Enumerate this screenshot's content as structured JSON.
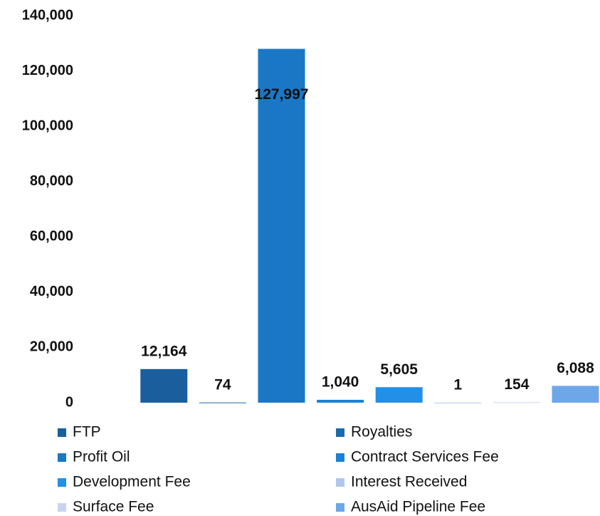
{
  "chart_data": {
    "type": "bar",
    "series": [
      {
        "name": "FTP",
        "color": "#1a5e9e",
        "values": [
          12164
        ],
        "value_labels": [
          "12,164"
        ]
      },
      {
        "name": "Royalties",
        "color": "#1c6aae",
        "values": [
          74
        ],
        "value_labels": [
          "74"
        ]
      },
      {
        "name": "Profit Oil",
        "color": "#1a77c6",
        "values": [
          127997
        ],
        "value_labels": [
          "127,997"
        ]
      },
      {
        "name": "Contract Services Fee",
        "color": "#1b82d4",
        "values": [
          1040
        ],
        "value_labels": [
          "1,040"
        ]
      },
      {
        "name": "Development Fee",
        "color": "#238fe6",
        "values": [
          5605
        ],
        "value_labels": [
          "5,605"
        ]
      },
      {
        "name": "Interest Received",
        "color": "#b1c8ec",
        "values": [
          1
        ],
        "value_labels": [
          "1"
        ]
      },
      {
        "name": "Surface Fee",
        "color": "#c9d4ee",
        "values": [
          154
        ],
        "value_labels": [
          "154"
        ]
      },
      {
        "name": "AusAid Pipeline Fee",
        "color": "#6ea7e8",
        "values": [
          6088
        ],
        "value_labels": [
          "6,088"
        ]
      }
    ],
    "ylim": [
      0,
      140000
    ],
    "yticks": [
      0,
      {
        "value": 20000,
        "label": "20,000"
      },
      {
        "value": 40000,
        "label": "40,000"
      },
      {
        "value": 60000,
        "label": "60,000"
      },
      {
        "value": 80000,
        "label": "80,000"
      },
      {
        "value": 100000,
        "label": "100,000"
      },
      {
        "value": 120000,
        "label": "120,000"
      },
      {
        "value": 140000,
        "label": "140,000"
      }
    ],
    "grid": false
  }
}
